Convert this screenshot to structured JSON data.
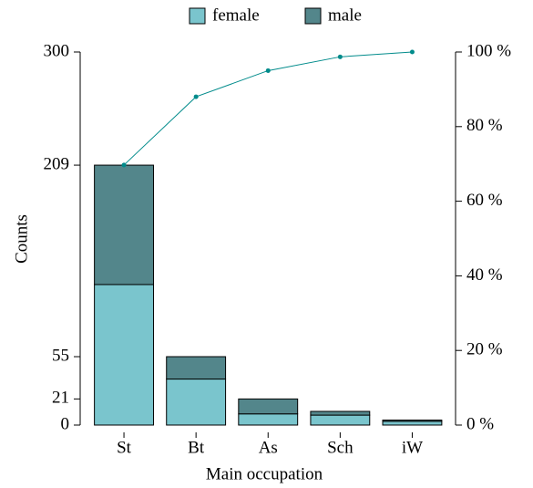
{
  "chart_data": {
    "type": "pareto",
    "x_label": "Main occupation",
    "y_label": "Counts",
    "categories": [
      "St",
      "Bt",
      "As",
      "Sch",
      "iW"
    ],
    "series": [
      {
        "name": "female",
        "color": "#7ac5cd",
        "values": [
          113,
          37,
          9,
          8,
          3
        ]
      },
      {
        "name": "male",
        "color": "#53868b",
        "values": [
          96,
          18,
          12,
          3,
          1
        ]
      }
    ],
    "cumulative": {
      "color": "#008b8b",
      "axis": "y2",
      "values": [
        69.7,
        88,
        95,
        98.7,
        100
      ]
    },
    "ylim": [
      0,
      300
    ],
    "yticks": [
      0,
      21,
      55,
      209,
      300
    ],
    "y2lim": [
      0,
      100
    ],
    "y2ticks": [
      {
        "value": 0,
        "label": "0 %"
      },
      {
        "value": 20,
        "label": "20 %"
      },
      {
        "value": 40,
        "label": "40 %"
      },
      {
        "value": 60,
        "label": "60 %"
      },
      {
        "value": 80,
        "label": "80 %"
      },
      {
        "value": 100,
        "label": "100 %"
      }
    ],
    "legend": "top"
  }
}
